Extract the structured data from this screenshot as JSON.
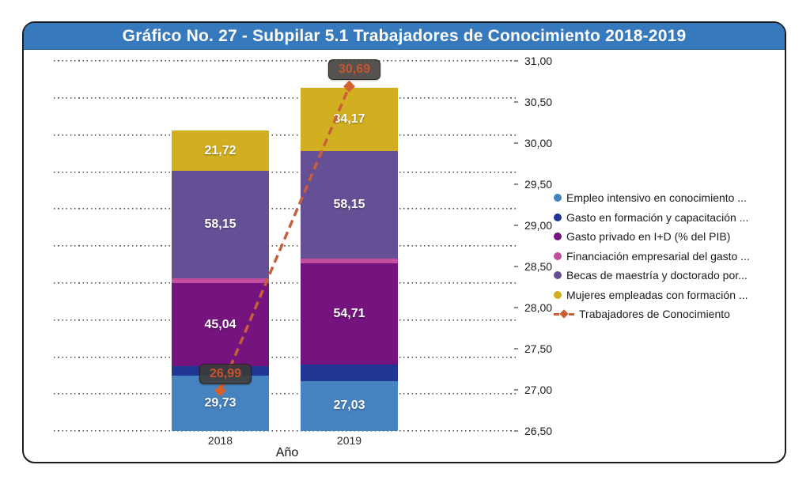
{
  "header": {
    "title": "Gráfico No. 27 - Subpilar 5.1 Trabajadores de Conocimiento 2018-2019",
    "bg_color": "#3779BD",
    "text_color": "#FFFFFF"
  },
  "chart_data": {
    "type": "bar",
    "subtype": "stacked-column-with-secondary-line",
    "title": "Gráfico No. 27 - Subpilar 5.1 Trabajadores de Conocimiento 2018-2019",
    "xlabel": "Año",
    "ylabel": "",
    "categories": [
      "2018",
      "2019"
    ],
    "series": [
      {
        "name": "Empleo intensivo en conocimiento ...",
        "color": "#4683C0",
        "values": [
          29.73,
          27.03
        ],
        "display_labels": [
          "29,73",
          "27,03"
        ],
        "labels_visible": true,
        "estimated": false
      },
      {
        "name": "Gasto en formación y capacitación ...",
        "color": "#203693",
        "values": [
          5.1,
          8.7
        ],
        "display_labels": [
          "",
          ""
        ],
        "labels_visible": false,
        "estimated": true
      },
      {
        "name": "Gasto privado en I+D (% del PIB)",
        "color": "#75137F",
        "values": [
          45.04,
          54.71
        ],
        "display_labels": [
          "45,04",
          "54,71"
        ],
        "labels_visible": true,
        "estimated": false
      },
      {
        "name": "Financiación empresarial del gasto ...",
        "color": "#C34E9F",
        "values": [
          2.6,
          2.6
        ],
        "display_labels": [
          "",
          ""
        ],
        "labels_visible": false,
        "estimated": true
      },
      {
        "name": "Becas de maestría y doctorado por...",
        "color": "#655095",
        "values": [
          58.15,
          58.15
        ],
        "display_labels": [
          "58,15",
          "58,15"
        ],
        "labels_visible": true,
        "estimated": false
      },
      {
        "name": "Mujeres empleadas con formación ...",
        "color": "#D2AE21",
        "values": [
          21.72,
          34.17
        ],
        "display_labels": [
          "21,72",
          "34,17"
        ],
        "labels_visible": true,
        "estimated": false
      }
    ],
    "line_series": {
      "name": "Trabajadores de Conocimiento",
      "color": "#C75F3B",
      "marker_color": "#D2622E",
      "values": [
        26.99,
        30.69
      ],
      "display_labels": [
        "26,99",
        "30,69"
      ],
      "axis": "secondary"
    },
    "secondary_axis": {
      "side": "right",
      "min": 26.5,
      "max": 31.0,
      "step": 0.5,
      "labels_top_to_bottom": [
        "31,00",
        "30,50",
        "30,00",
        "29,50",
        "29,00",
        "28,50",
        "28,00",
        "27,50",
        "27,00",
        "26,50"
      ]
    },
    "primary_axis_estimated": {
      "min": 0,
      "max": 200,
      "gridline_step": 20,
      "labels_visible": false
    },
    "grid": {
      "visible": true,
      "style": "dotted",
      "color": "#565656",
      "line_count": 11
    },
    "legend_position": "right",
    "annotation_box": {
      "bg": "rgba(62,58,55,0.88)",
      "text_color": "#C8552F"
    }
  }
}
